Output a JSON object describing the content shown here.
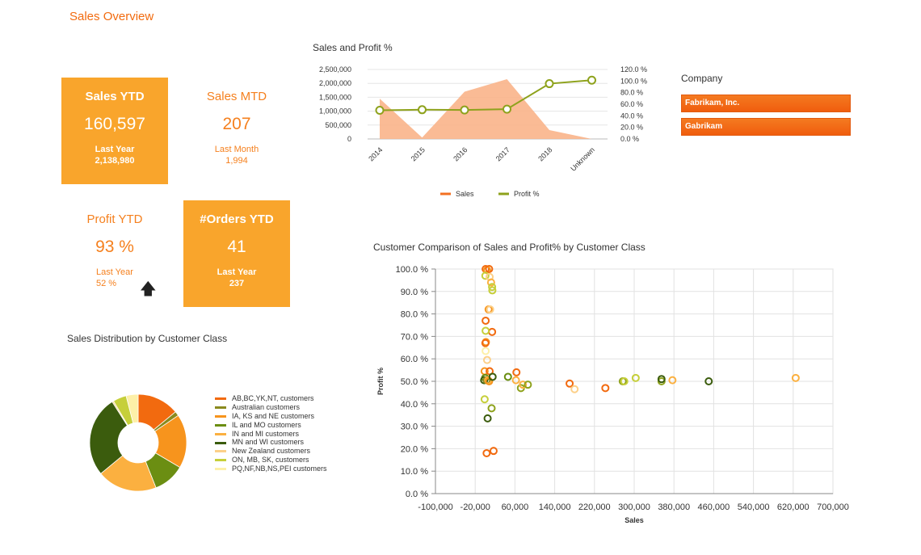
{
  "page": {
    "title": "Sales Overview"
  },
  "kpis": {
    "sales_ytd": {
      "title": "Sales YTD",
      "value": "160,597",
      "label": "Last Year",
      "sub": "2,138,980"
    },
    "sales_mtd": {
      "title": "Sales MTD",
      "value": "207",
      "label": "Last Month",
      "sub": "1,994"
    },
    "profit_ytd": {
      "title": "Profit YTD",
      "value": "93 %",
      "label": "Last Year",
      "sub": "52 %"
    },
    "orders_ytd": {
      "title": "#Orders YTD",
      "value": "41",
      "label": "Last Year",
      "sub": "237"
    }
  },
  "company_slicer": {
    "label": "Company",
    "items": [
      {
        "label": "Fabrikam, Inc."
      },
      {
        "label": "Gabrikam"
      }
    ]
  },
  "colors": {
    "accent": "#f26b0f",
    "kpi_fill": "#f9a52c",
    "sales": "#f37021",
    "profit": "#8ea21c"
  },
  "chart_data": [
    {
      "type": "line",
      "title": "Sales and Profit %",
      "categories": [
        "2014",
        "2015",
        "2016",
        "2017",
        "2018",
        "Unknown"
      ],
      "series": [
        {
          "name": "Sales",
          "type": "area",
          "axis": "left",
          "color": "#f37021",
          "values": [
            1450000,
            50000,
            1700000,
            2150000,
            320000,
            0
          ]
        },
        {
          "name": "Profit %",
          "type": "line",
          "axis": "right",
          "color": "#8ea21c",
          "values": [
            49.5,
            50.5,
            50.0,
            51.5,
            95.5,
            101.5
          ]
        }
      ],
      "ylim_left": [
        0,
        2500000
      ],
      "yticks_left": [
        "0",
        "500,000",
        "1,000,000",
        "1,500,000",
        "2,000,000",
        "2,500,000"
      ],
      "ylim_right": [
        0,
        120
      ],
      "yticks_right": [
        "0.0 %",
        "20.0 %",
        "40.0 %",
        "60.0 %",
        "80.0 %",
        "100.0 %",
        "120.0 %"
      ],
      "legend": "bottom",
      "grid": true
    },
    {
      "type": "pie",
      "title": "Sales Distribution by Customer Class",
      "donut": true,
      "slices": [
        {
          "label": "AB,BC,YK,NT, customers",
          "value": 14,
          "color": "#f26a0f"
        },
        {
          "label": "Australian customers",
          "value": 1.5,
          "color": "#8a8a1e"
        },
        {
          "label": "IA, KS and NE customers",
          "value": 18,
          "color": "#f7941d"
        },
        {
          "label": "IL and MO customers",
          "value": 10.5,
          "color": "#6b8e12"
        },
        {
          "label": "IN and MI customers",
          "value": 20,
          "color": "#fbb040"
        },
        {
          "label": "MN and WI customers",
          "value": 27,
          "color": "#3b5c0d"
        },
        {
          "label": "New Zealand customers",
          "value": 0.5,
          "color": "#fcd089"
        },
        {
          "label": "ON, MB, SK,  customers",
          "value": 4.5,
          "color": "#c6cf3a"
        },
        {
          "label": "PQ,NF,NB,NS,PEI customers",
          "value": 4,
          "color": "#fdf0a8"
        }
      ],
      "legend": "right"
    },
    {
      "type": "scatter",
      "title": "Customer Comparison of Sales and Profit% by Customer Class",
      "xlabel": "Sales",
      "ylabel": "Profit %",
      "xlim": [
        -100000,
        700000
      ],
      "xticks": [
        "-100,000",
        "-20,000",
        "60,000",
        "140,000",
        "220,000",
        "300,000",
        "380,000",
        "460,000",
        "540,000",
        "620,000",
        "700,000"
      ],
      "ylim": [
        0,
        100
      ],
      "yticks": [
        "0.0 %",
        "10.0 %",
        "20.0 %",
        "30.0 %",
        "40.0 %",
        "50.0 %",
        "60.0 %",
        "70.0 %",
        "80.0 %",
        "90.0 %",
        "100.0 %"
      ],
      "grid": true,
      "points": [
        {
          "x": 1000,
          "y": 100,
          "c": "#f26a0f"
        },
        {
          "x": 4000,
          "y": 99.5,
          "c": "#f7941d"
        },
        {
          "x": 8000,
          "y": 100,
          "c": "#f26a0f"
        },
        {
          "x": 500,
          "y": 97,
          "c": "#c6cf3a"
        },
        {
          "x": 9000,
          "y": 96.5,
          "c": "#fcd089"
        },
        {
          "x": 12000,
          "y": 94,
          "c": "#fbb040"
        },
        {
          "x": 14000,
          "y": 92,
          "c": "#c6cf3a"
        },
        {
          "x": 14500,
          "y": 90.5,
          "c": "#c6cf3a"
        },
        {
          "x": 7000,
          "y": 82,
          "c": "#f7941d"
        },
        {
          "x": 10000,
          "y": 82,
          "c": "#fcd089"
        },
        {
          "x": 1000,
          "y": 77,
          "c": "#f26a0f"
        },
        {
          "x": 14000,
          "y": 72,
          "c": "#f26a0f"
        },
        {
          "x": 1000,
          "y": 72.5,
          "c": "#c6cf3a"
        },
        {
          "x": 1500,
          "y": 67.5,
          "c": "#f7941d"
        },
        {
          "x": 500,
          "y": 67,
          "c": "#f26a0f"
        },
        {
          "x": 1000,
          "y": 63.5,
          "c": "#fdf0a8"
        },
        {
          "x": 4000,
          "y": 59.5,
          "c": "#fcd089"
        },
        {
          "x": -1000,
          "y": 54.5,
          "c": "#f7941d"
        },
        {
          "x": 9000,
          "y": 54.5,
          "c": "#f26a0f"
        },
        {
          "x": 0,
          "y": 51.5,
          "c": "#6b8e12"
        },
        {
          "x": -2000,
          "y": 50.5,
          "c": "#3b5c0d"
        },
        {
          "x": 3000,
          "y": 50.5,
          "c": "#8a8a1e"
        },
        {
          "x": 6000,
          "y": 50.5,
          "c": "#fbb040"
        },
        {
          "x": 8000,
          "y": 50,
          "c": "#f7941d"
        },
        {
          "x": 15000,
          "y": 52,
          "c": "#3b5c0d"
        },
        {
          "x": 46000,
          "y": 52,
          "c": "#6b8e12"
        },
        {
          "x": 63000,
          "y": 54,
          "c": "#f26a0f"
        },
        {
          "x": 62000,
          "y": 50.5,
          "c": "#fbb040"
        },
        {
          "x": 72000,
          "y": 47,
          "c": "#8ea21c"
        },
        {
          "x": 76000,
          "y": 48.5,
          "c": "#fbb040"
        },
        {
          "x": 86000,
          "y": 48.5,
          "c": "#8ea21c"
        },
        {
          "x": 170000,
          "y": 49,
          "c": "#f26a0f"
        },
        {
          "x": 180000,
          "y": 46.5,
          "c": "#fcd089"
        },
        {
          "x": 242000,
          "y": 47,
          "c": "#f26a0f"
        },
        {
          "x": 277000,
          "y": 50,
          "c": "#8ea21c"
        },
        {
          "x": 280000,
          "y": 50,
          "c": "#c6cf3a"
        },
        {
          "x": 303000,
          "y": 51.5,
          "c": "#c6cf3a"
        },
        {
          "x": 355000,
          "y": 50,
          "c": "#8ea21c"
        },
        {
          "x": 355000,
          "y": 51,
          "c": "#3b5c0d"
        },
        {
          "x": 377000,
          "y": 50.5,
          "c": "#fbb040"
        },
        {
          "x": 450000,
          "y": 50,
          "c": "#3b5c0d"
        },
        {
          "x": 625000,
          "y": 51.5,
          "c": "#fbb040"
        },
        {
          "x": 13000,
          "y": 38,
          "c": "#8ea21c"
        },
        {
          "x": -1000,
          "y": 42,
          "c": "#c6cf3a"
        },
        {
          "x": 5000,
          "y": 33.5,
          "c": "#3b5c0d"
        },
        {
          "x": 3000,
          "y": 18,
          "c": "#f26a0f"
        },
        {
          "x": 17000,
          "y": 19,
          "c": "#f26a0f"
        }
      ]
    }
  ]
}
